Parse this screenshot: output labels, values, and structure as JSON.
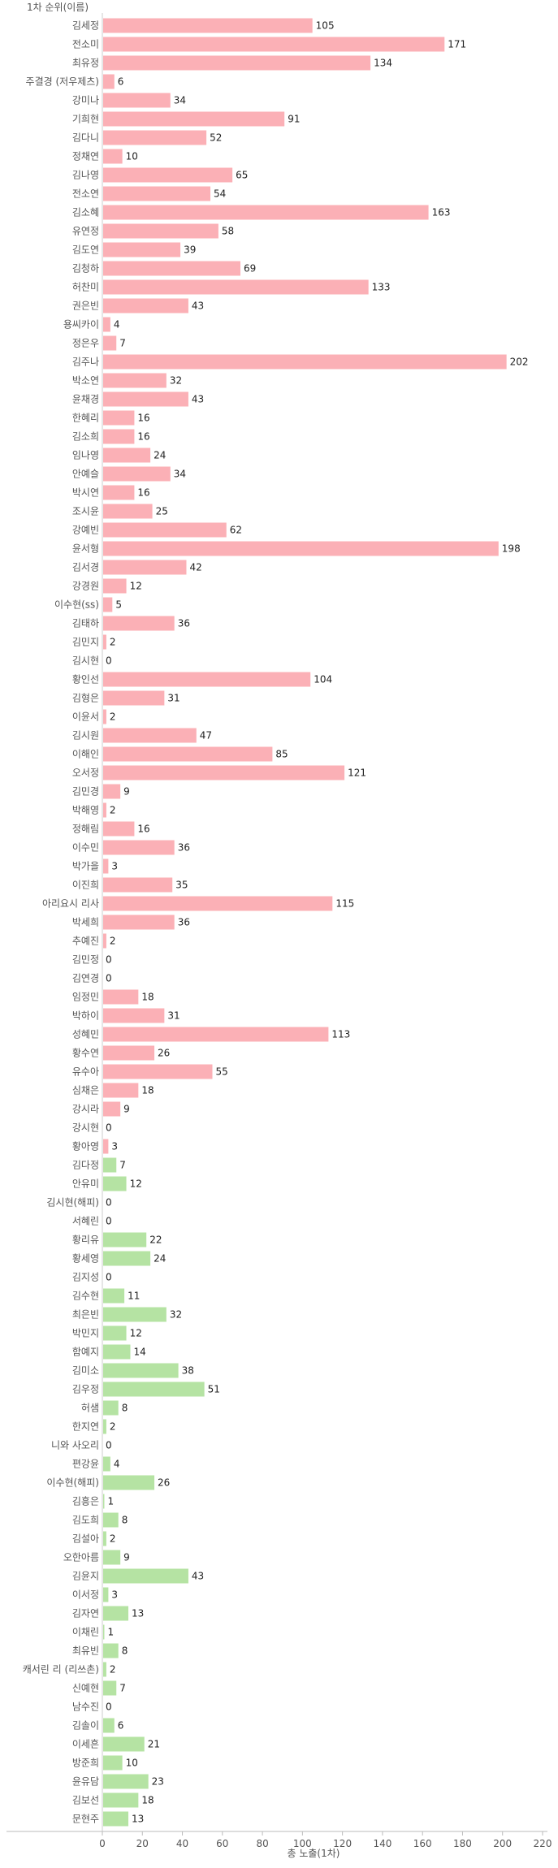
{
  "chart_data": {
    "type": "bar",
    "orientation": "horizontal",
    "ylabel": "1차 순위(이름)",
    "xlabel": "총 노출(1차)",
    "xlim": [
      0,
      220
    ],
    "xticks": [
      0,
      20,
      40,
      60,
      80,
      100,
      120,
      140,
      160,
      180,
      200,
      220
    ],
    "grid": false,
    "colors": {
      "pink": "#fbb0b6",
      "green": "#b5e3a3"
    },
    "bars": [
      {
        "name": "김세정",
        "value": 105,
        "group": "pink"
      },
      {
        "name": "전소미",
        "value": 171,
        "group": "pink"
      },
      {
        "name": "최유정",
        "value": 134,
        "group": "pink"
      },
      {
        "name": "주결경 (저우제츠)",
        "value": 6,
        "group": "pink"
      },
      {
        "name": "강미나",
        "value": 34,
        "group": "pink"
      },
      {
        "name": "기희현",
        "value": 91,
        "group": "pink"
      },
      {
        "name": "김다니",
        "value": 52,
        "group": "pink"
      },
      {
        "name": "정채연",
        "value": 10,
        "group": "pink"
      },
      {
        "name": "김나영",
        "value": 65,
        "group": "pink"
      },
      {
        "name": "전소연",
        "value": 54,
        "group": "pink"
      },
      {
        "name": "김소혜",
        "value": 163,
        "group": "pink"
      },
      {
        "name": "유연정",
        "value": 58,
        "group": "pink"
      },
      {
        "name": "김도연",
        "value": 39,
        "group": "pink"
      },
      {
        "name": "김청하",
        "value": 69,
        "group": "pink"
      },
      {
        "name": "허찬미",
        "value": 133,
        "group": "pink"
      },
      {
        "name": "권은빈",
        "value": 43,
        "group": "pink"
      },
      {
        "name": "용씨카이",
        "value": 4,
        "group": "pink"
      },
      {
        "name": "정은우",
        "value": 7,
        "group": "pink"
      },
      {
        "name": "김주나",
        "value": 202,
        "group": "pink"
      },
      {
        "name": "박소연",
        "value": 32,
        "group": "pink"
      },
      {
        "name": "윤채경",
        "value": 43,
        "group": "pink"
      },
      {
        "name": "한혜리",
        "value": 16,
        "group": "pink"
      },
      {
        "name": "김소희",
        "value": 16,
        "group": "pink"
      },
      {
        "name": "임나영",
        "value": 24,
        "group": "pink"
      },
      {
        "name": "안예슬",
        "value": 34,
        "group": "pink"
      },
      {
        "name": "박시연",
        "value": 16,
        "group": "pink"
      },
      {
        "name": "조시윤",
        "value": 25,
        "group": "pink"
      },
      {
        "name": "강예빈",
        "value": 62,
        "group": "pink"
      },
      {
        "name": "윤서형",
        "value": 198,
        "group": "pink"
      },
      {
        "name": "김서경",
        "value": 42,
        "group": "pink"
      },
      {
        "name": "강경원",
        "value": 12,
        "group": "pink"
      },
      {
        "name": "이수현(ss)",
        "value": 5,
        "group": "pink"
      },
      {
        "name": "김태하",
        "value": 36,
        "group": "pink"
      },
      {
        "name": "김민지",
        "value": 2,
        "group": "pink"
      },
      {
        "name": "김시현",
        "value": 0,
        "group": "pink"
      },
      {
        "name": "황인선",
        "value": 104,
        "group": "pink"
      },
      {
        "name": "김형은",
        "value": 31,
        "group": "pink"
      },
      {
        "name": "이윤서",
        "value": 2,
        "group": "pink"
      },
      {
        "name": "김시원",
        "value": 47,
        "group": "pink"
      },
      {
        "name": "이해인",
        "value": 85,
        "group": "pink"
      },
      {
        "name": "오서정",
        "value": 121,
        "group": "pink"
      },
      {
        "name": "김민경",
        "value": 9,
        "group": "pink"
      },
      {
        "name": "박해영",
        "value": 2,
        "group": "pink"
      },
      {
        "name": "정해림",
        "value": 16,
        "group": "pink"
      },
      {
        "name": "이수민",
        "value": 36,
        "group": "pink"
      },
      {
        "name": "박가을",
        "value": 3,
        "group": "pink"
      },
      {
        "name": "이진희",
        "value": 35,
        "group": "pink"
      },
      {
        "name": "아리요시 리사",
        "value": 115,
        "group": "pink"
      },
      {
        "name": "박세희",
        "value": 36,
        "group": "pink"
      },
      {
        "name": "추예진",
        "value": 2,
        "group": "pink"
      },
      {
        "name": "김민정",
        "value": 0,
        "group": "pink"
      },
      {
        "name": "김연경",
        "value": 0,
        "group": "pink"
      },
      {
        "name": "임정민",
        "value": 18,
        "group": "pink"
      },
      {
        "name": "박하이",
        "value": 31,
        "group": "pink"
      },
      {
        "name": "성혜민",
        "value": 113,
        "group": "pink"
      },
      {
        "name": "황수연",
        "value": 26,
        "group": "pink"
      },
      {
        "name": "유수아",
        "value": 55,
        "group": "pink"
      },
      {
        "name": "심채은",
        "value": 18,
        "group": "pink"
      },
      {
        "name": "강시라",
        "value": 9,
        "group": "pink"
      },
      {
        "name": "강시현",
        "value": 0,
        "group": "pink"
      },
      {
        "name": "황아영",
        "value": 3,
        "group": "pink"
      },
      {
        "name": "김다정",
        "value": 7,
        "group": "green"
      },
      {
        "name": "안유미",
        "value": 12,
        "group": "green"
      },
      {
        "name": "김시현(해피)",
        "value": 0,
        "group": "green"
      },
      {
        "name": "서혜린",
        "value": 0,
        "group": "green"
      },
      {
        "name": "황리유",
        "value": 22,
        "group": "green"
      },
      {
        "name": "황세영",
        "value": 24,
        "group": "green"
      },
      {
        "name": "김지성",
        "value": 0,
        "group": "green"
      },
      {
        "name": "김수현",
        "value": 11,
        "group": "green"
      },
      {
        "name": "최은빈",
        "value": 32,
        "group": "green"
      },
      {
        "name": "박민지",
        "value": 12,
        "group": "green"
      },
      {
        "name": "함예지",
        "value": 14,
        "group": "green"
      },
      {
        "name": "김미소",
        "value": 38,
        "group": "green"
      },
      {
        "name": "김우정",
        "value": 51,
        "group": "green"
      },
      {
        "name": "허샘",
        "value": 8,
        "group": "green"
      },
      {
        "name": "한지연",
        "value": 2,
        "group": "green"
      },
      {
        "name": "니와 사오리",
        "value": 0,
        "group": "green"
      },
      {
        "name": "편강윤",
        "value": 4,
        "group": "green"
      },
      {
        "name": "이수현(해피)",
        "value": 26,
        "group": "green"
      },
      {
        "name": "김흥은",
        "value": 1,
        "group": "green"
      },
      {
        "name": "김도희",
        "value": 8,
        "group": "green"
      },
      {
        "name": "김설아",
        "value": 2,
        "group": "green"
      },
      {
        "name": "오한아름",
        "value": 9,
        "group": "green"
      },
      {
        "name": "김윤지",
        "value": 43,
        "group": "green"
      },
      {
        "name": "이서정",
        "value": 3,
        "group": "green"
      },
      {
        "name": "김자연",
        "value": 13,
        "group": "green"
      },
      {
        "name": "이채린",
        "value": 1,
        "group": "green"
      },
      {
        "name": "최유빈",
        "value": 8,
        "group": "green"
      },
      {
        "name": "캐서린 리 (리쓰촌)",
        "value": 2,
        "group": "green"
      },
      {
        "name": "신예현",
        "value": 7,
        "group": "green"
      },
      {
        "name": "남수진",
        "value": 0,
        "group": "green"
      },
      {
        "name": "김솔이",
        "value": 6,
        "group": "green"
      },
      {
        "name": "이세흔",
        "value": 21,
        "group": "green"
      },
      {
        "name": "방준희",
        "value": 10,
        "group": "green"
      },
      {
        "name": "윤유담",
        "value": 23,
        "group": "green"
      },
      {
        "name": "김보선",
        "value": 18,
        "group": "green"
      },
      {
        "name": "문현주",
        "value": 13,
        "group": "green"
      }
    ]
  }
}
